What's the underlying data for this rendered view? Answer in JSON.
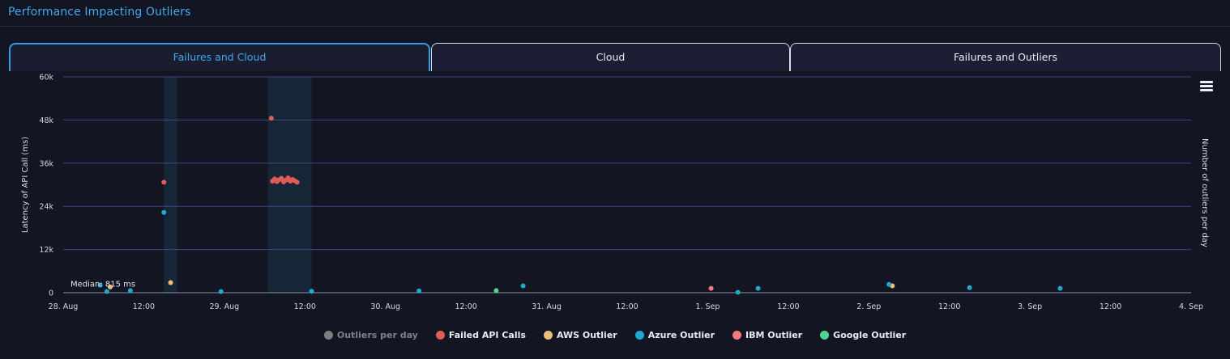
{
  "panel": {
    "title": "Performance Impacting Outliers"
  },
  "tabs": [
    {
      "label": "Failures and Cloud",
      "active": true
    },
    {
      "label": "Cloud",
      "active": false
    },
    {
      "label": "Failures and Outliers",
      "active": false
    }
  ],
  "menu": {
    "icon": "hamburger-menu-icon"
  },
  "chart_data": {
    "type": "scatter",
    "ylabel": "Latency of API Call (ms)",
    "y2label": "Number of outliers per day",
    "ylim": [
      0,
      60000
    ],
    "yticks": [
      "0",
      "12k",
      "24k",
      "36k",
      "48k",
      "60k"
    ],
    "ytick_values": [
      0,
      12000,
      24000,
      36000,
      48000,
      60000
    ],
    "xlim": [
      "2023-08-28 00:00",
      "2023-09-04 00:00"
    ],
    "xticks": [
      "28. Aug",
      "12:00",
      "29. Aug",
      "12:00",
      "30. Aug",
      "12:00",
      "31. Aug",
      "12:00",
      "1. Sep",
      "12:00",
      "2. Sep",
      "12:00",
      "3. Sep",
      "12:00",
      "4. Sep"
    ],
    "grid": true,
    "legend_position": "bottom-center",
    "median_label": "Median: 815 ms",
    "median_value": 815,
    "shaded_bands": [
      {
        "from": "2023-08-28 15:00",
        "to": "2023-08-28 17:00"
      },
      {
        "from": "2023-08-29 06:30",
        "to": "2023-08-29 13:00"
      }
    ],
    "series": [
      {
        "name": "Outliers per day",
        "color": "#7d7d7d",
        "visible": false,
        "points": []
      },
      {
        "name": "Failed API Calls",
        "color": "#e35a5a",
        "visible": true,
        "points": [
          [
            "2023-08-28 15:00",
            30700
          ],
          [
            "2023-08-29 07:00",
            48500
          ],
          [
            "2023-08-29 07:10",
            31000
          ],
          [
            "2023-08-29 07:30",
            31600
          ],
          [
            "2023-08-29 07:50",
            30900
          ],
          [
            "2023-08-29 08:10",
            31400
          ],
          [
            "2023-08-29 08:30",
            31800
          ],
          [
            "2023-08-29 08:50",
            30800
          ],
          [
            "2023-08-29 09:10",
            31300
          ],
          [
            "2023-08-29 09:30",
            31900
          ],
          [
            "2023-08-29 09:50",
            31000
          ],
          [
            "2023-08-29 10:10",
            31500
          ],
          [
            "2023-08-29 10:30",
            31100
          ],
          [
            "2023-08-29 10:50",
            30700
          ]
        ]
      },
      {
        "name": "AWS Outlier",
        "color": "#e8c178",
        "visible": true,
        "points": [
          [
            "2023-08-28 07:00",
            1600
          ],
          [
            "2023-08-28 16:00",
            2800
          ],
          [
            "2023-09-02 03:30",
            1900
          ]
        ]
      },
      {
        "name": "Azure Outlier",
        "color": "#1fa9cf",
        "visible": true,
        "points": [
          [
            "2023-08-28 05:30",
            2100
          ],
          [
            "2023-08-28 06:30",
            300
          ],
          [
            "2023-08-28 10:00",
            600
          ],
          [
            "2023-08-28 15:00",
            22300
          ],
          [
            "2023-08-28 23:30",
            300
          ],
          [
            "2023-08-29 13:00",
            400
          ],
          [
            "2023-08-30 05:00",
            500
          ],
          [
            "2023-08-30 20:30",
            1900
          ],
          [
            "2023-09-01 04:30",
            100
          ],
          [
            "2023-09-01 07:30",
            1200
          ],
          [
            "2023-09-02 03:00",
            2300
          ],
          [
            "2023-09-02 15:00",
            1400
          ],
          [
            "2023-09-03 04:30",
            1200
          ]
        ]
      },
      {
        "name": "IBM Outlier",
        "color": "#f47a7a",
        "visible": true,
        "points": [
          [
            "2023-09-01 00:30",
            1200
          ]
        ]
      },
      {
        "name": "Google Outlier",
        "color": "#4ed395",
        "visible": true,
        "points": [
          [
            "2023-08-30 16:30",
            600
          ]
        ]
      }
    ]
  }
}
